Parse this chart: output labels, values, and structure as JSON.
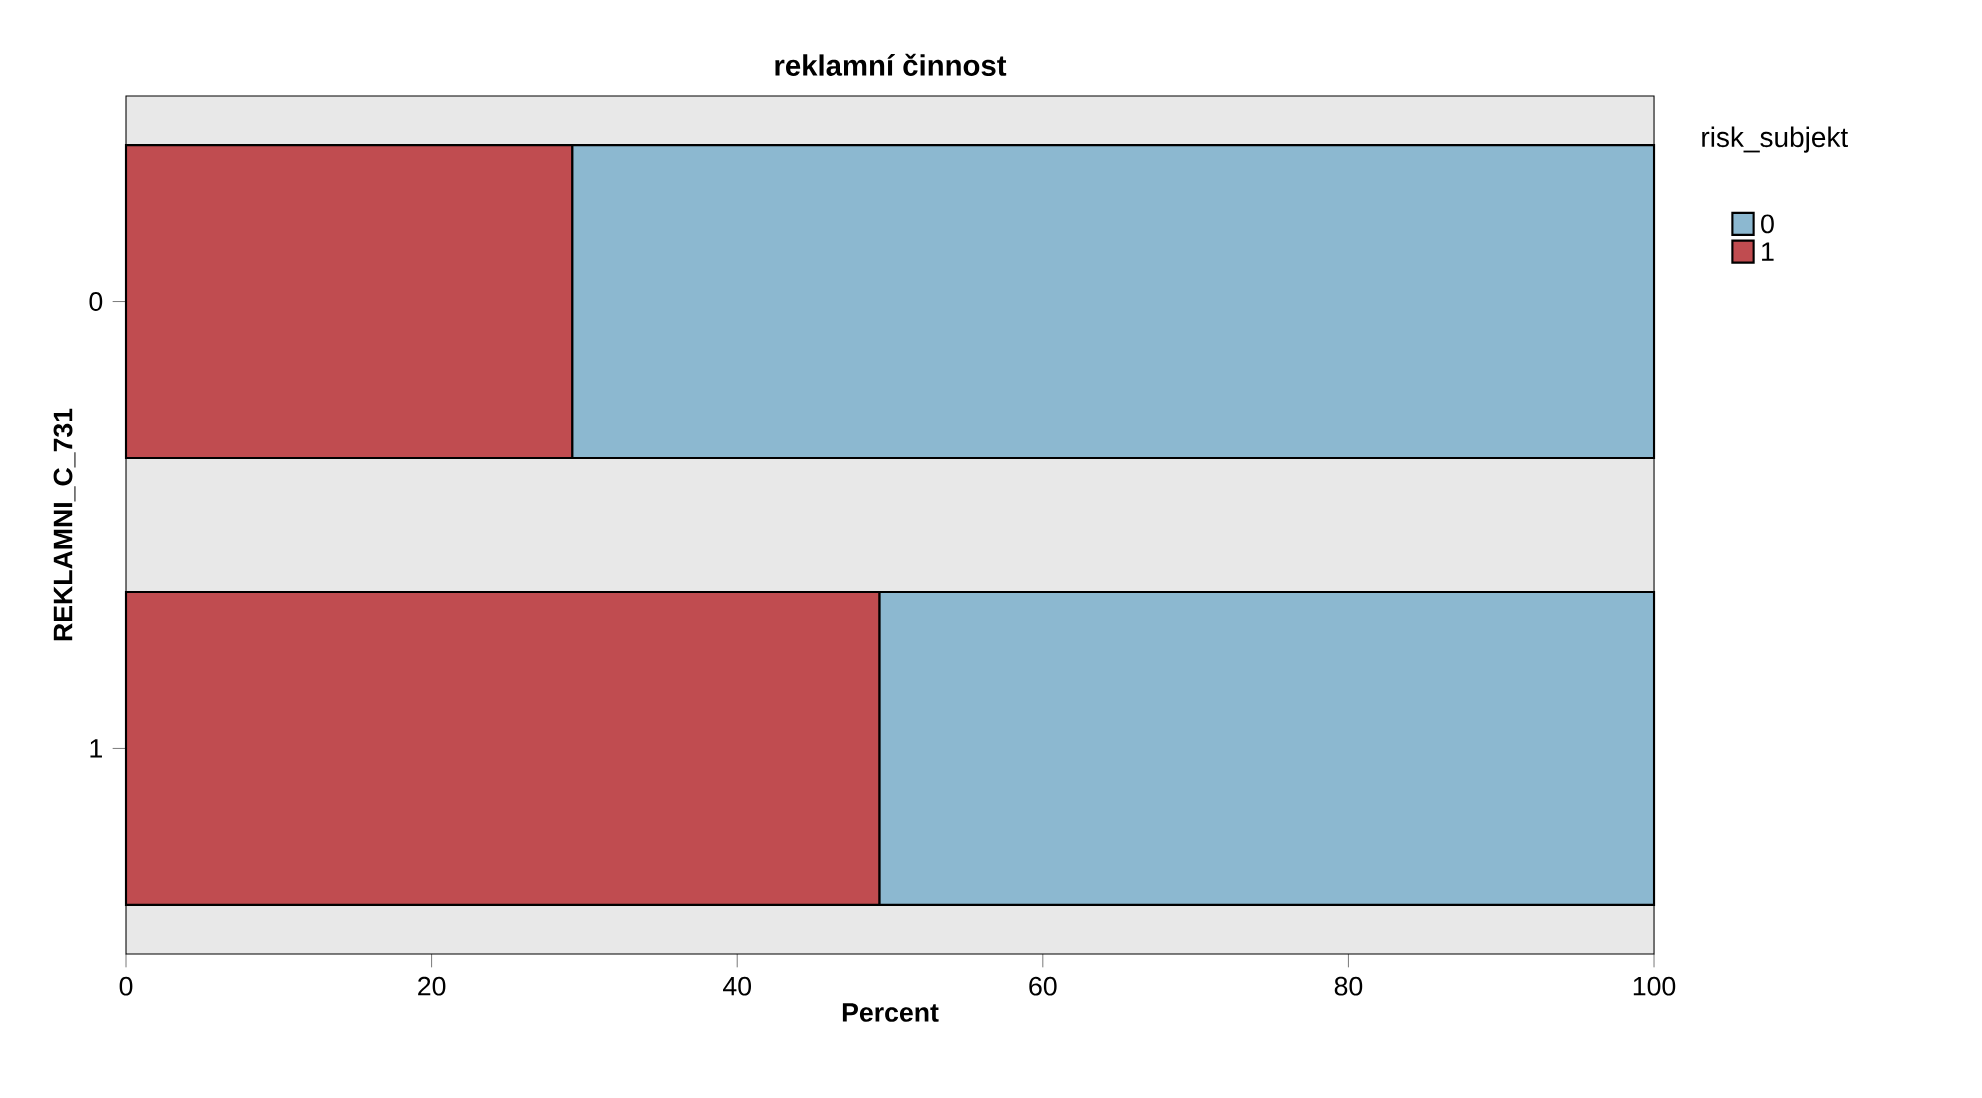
{
  "chart_data": {
    "type": "bar",
    "orientation": "horizontal",
    "stacked": true,
    "title": "reklamní činnost",
    "xlabel": "Percent",
    "ylabel": "REKLAMNI_C_731",
    "legend_title": "risk_subjekt",
    "categories": [
      "0",
      "1"
    ],
    "series": [
      {
        "name": "1",
        "color": "#c04c50",
        "values": [
          29.2,
          49.3
        ]
      },
      {
        "name": "0",
        "color": "#8cb8d0",
        "values": [
          70.8,
          50.7
        ]
      }
    ],
    "xlim": [
      0,
      100
    ],
    "xticks": [
      0,
      20,
      40,
      60,
      80,
      100
    ],
    "legend": "top right",
    "grid": false
  }
}
